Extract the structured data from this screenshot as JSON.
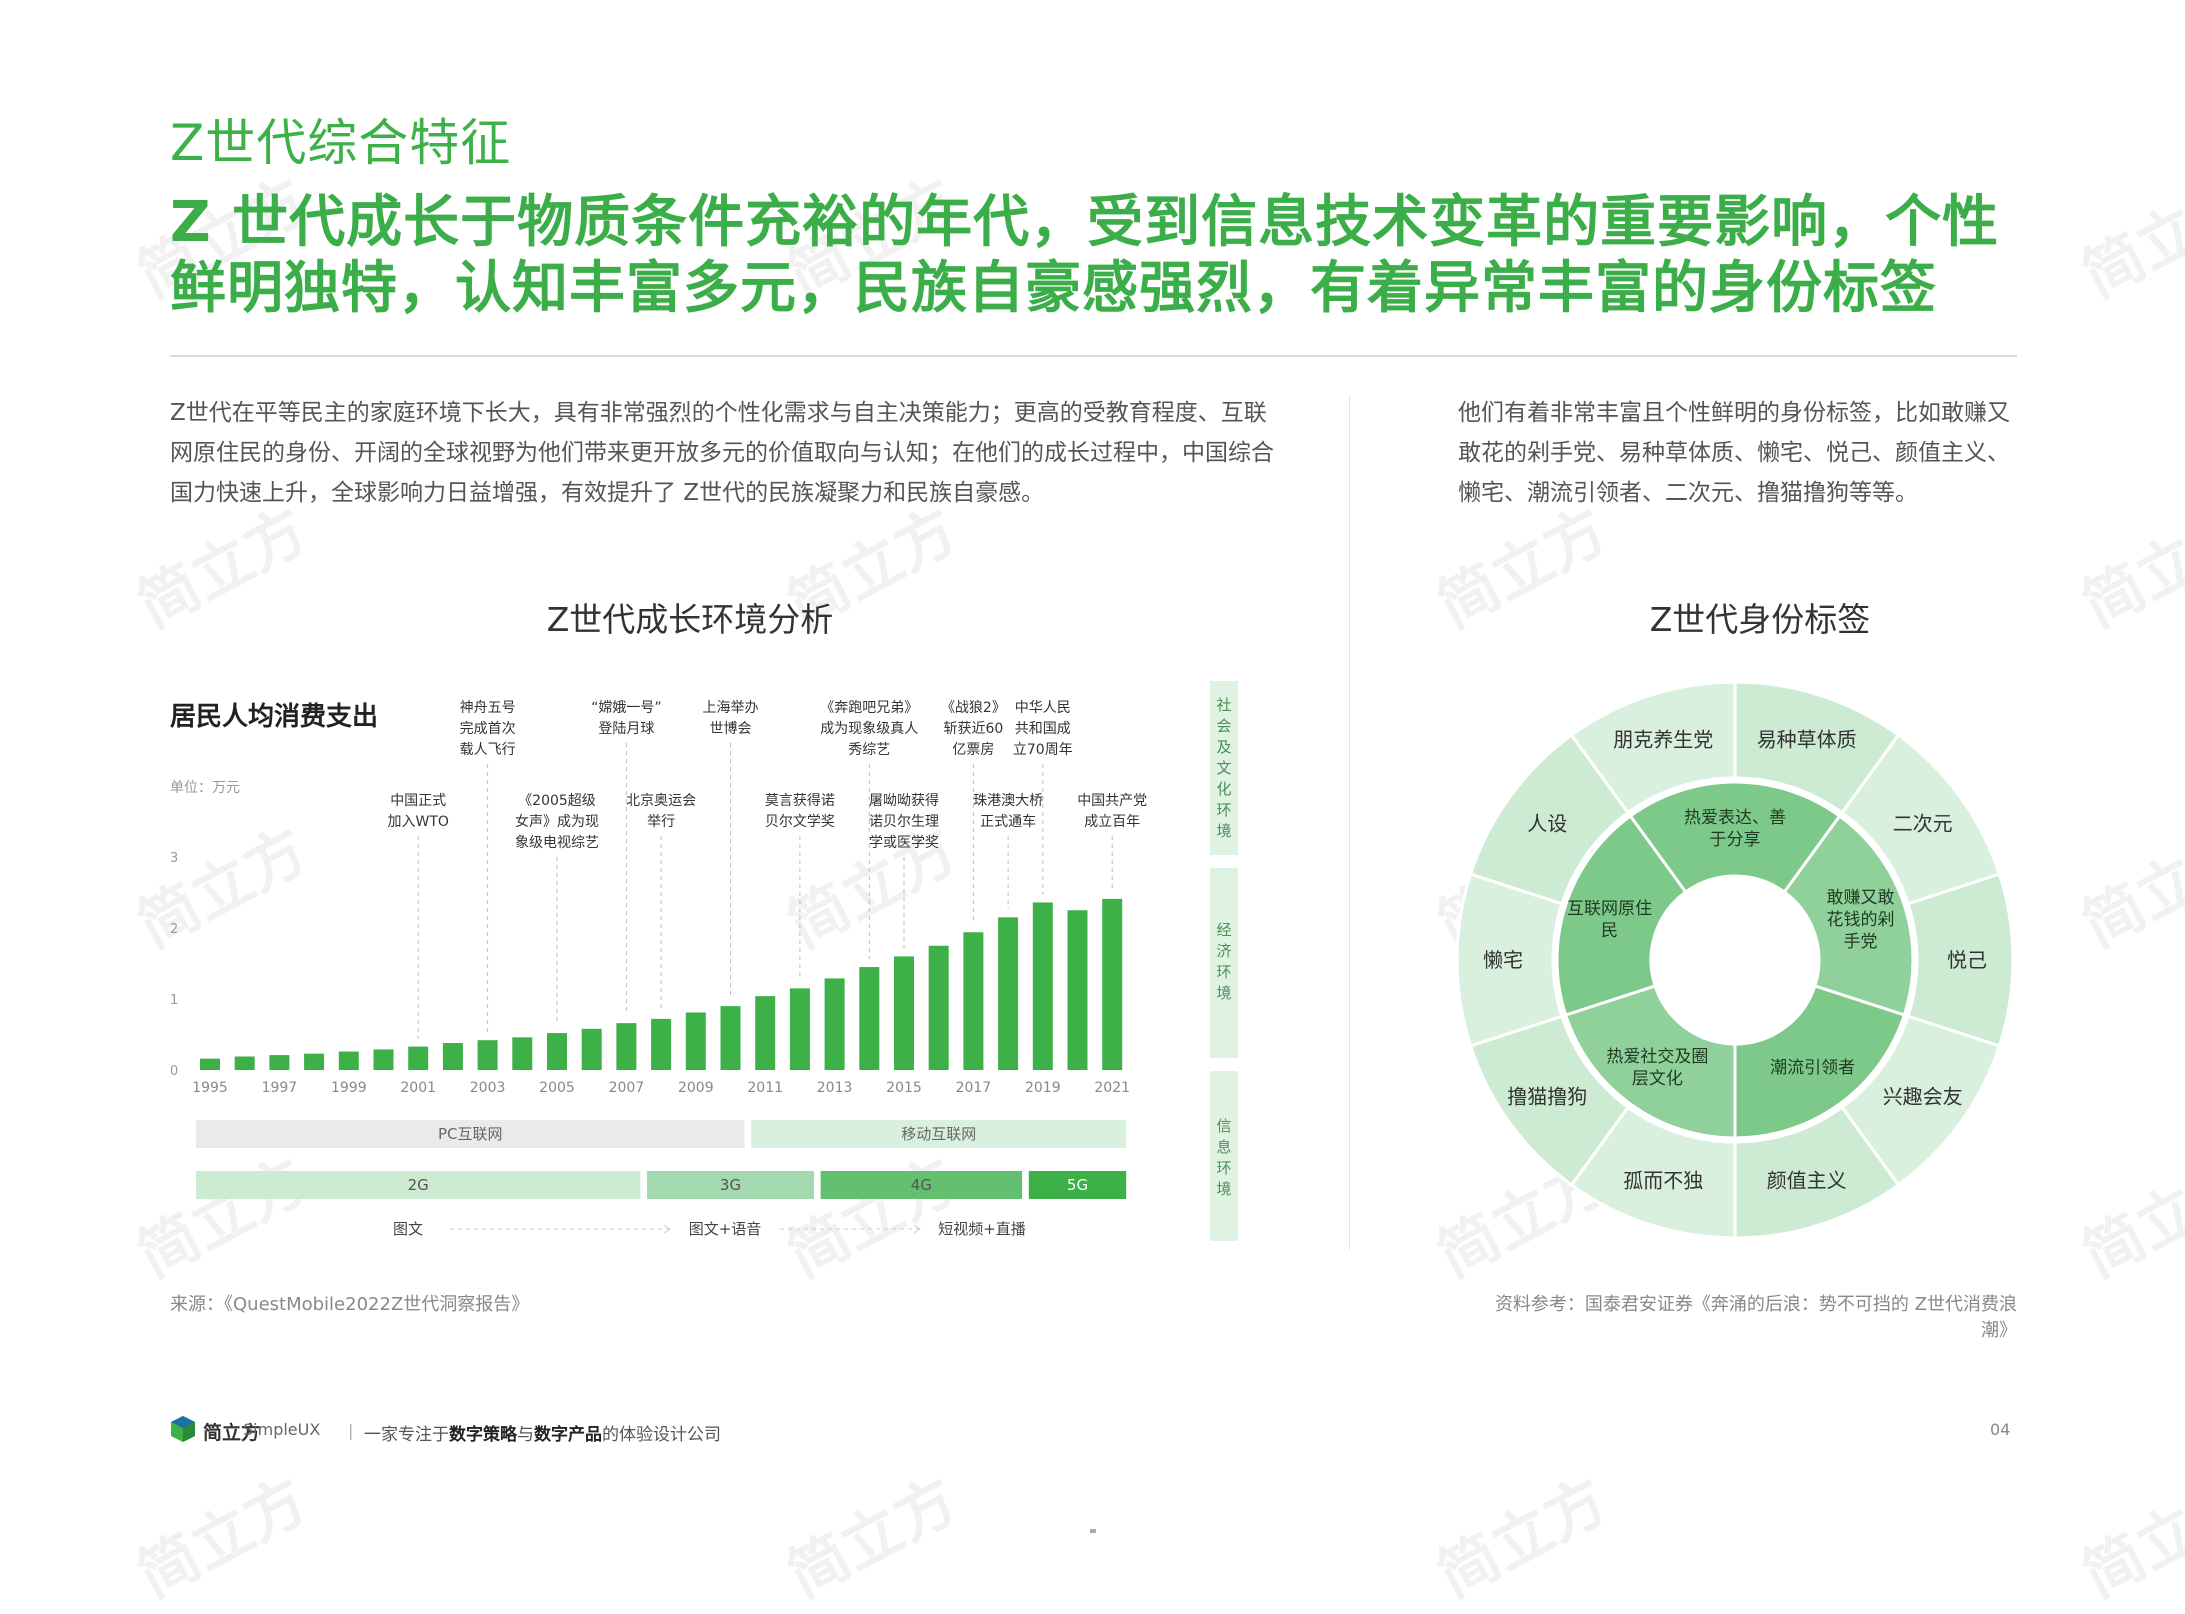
{
  "section_title": "Z世代综合特征",
  "headline": "Z 世代成长于物质条件充裕的年代，受到信息技术变革的重要影响，个性鲜明独特，认知丰富多元，民族自豪感强烈，有着异常丰富的身份标签",
  "intro_left": "Z世代在平等民主的家庭环境下长大，具有非常强烈的个性化需求与自主决策能力；更高的受教育程度、互联网原住民的身份、开阔的全球视野为他们带来更开放多元的价值取向与认知；在他们的成长过程中，中国综合国力快速上升，全球影响力日益增强，有效提升了 Z世代的民族凝聚力和民族自豪感。",
  "intro_right": "他们有着非常丰富且个性鲜明的身份标签，比如敢赚又敢花的剁手党、易种草体质、懒宅、悦己、颜值主义、懒宅、潮流引领者、二次元、撸猫撸狗等等。",
  "left_chart_title": "Z世代成长环境分析",
  "right_chart_title": "Z世代身份标签",
  "chart_label": "居民人均消费支出",
  "unit_label": "单位：万元",
  "side_bands": {
    "social": "社会及文化环境",
    "economy": "经济环境",
    "info": "信息环境"
  },
  "chart_data": {
    "type": "bar",
    "title": "居民人均消费支出",
    "ylabel": "单位：万元",
    "ylim": [
      0,
      3
    ],
    "yticks": [
      "0",
      "1",
      "2",
      "3"
    ],
    "categories": [
      "1995",
      "1996",
      "1997",
      "1998",
      "1999",
      "2000",
      "2001",
      "2002",
      "2003",
      "2004",
      "2005",
      "2006",
      "2007",
      "2008",
      "2009",
      "2010",
      "2011",
      "2012",
      "2013",
      "2014",
      "2015",
      "2016",
      "2017",
      "2018",
      "2019",
      "2020",
      "2021"
    ],
    "xtick_labels": [
      "1995",
      "1997",
      "1999",
      "2001",
      "2003",
      "2005",
      "2007",
      "2009",
      "2011",
      "2013",
      "2015",
      "2017",
      "2019",
      "2021"
    ],
    "values": [
      0.16,
      0.19,
      0.21,
      0.23,
      0.26,
      0.29,
      0.33,
      0.38,
      0.42,
      0.46,
      0.52,
      0.58,
      0.66,
      0.72,
      0.81,
      0.9,
      1.04,
      1.15,
      1.29,
      1.45,
      1.6,
      1.75,
      1.94,
      2.15,
      2.36,
      2.25,
      2.41
    ],
    "color": "#3db048",
    "events": [
      {
        "text": "中国正式\n加入WTO",
        "year": "2001"
      },
      {
        "text": "神舟五号\n完成首次\n载人飞行",
        "year": "2003"
      },
      {
        "text": "《2005超级\n女声》成为现\n象级电视综艺",
        "year": "2005"
      },
      {
        "text": "“嫦娥一号”\n登陆月球",
        "year": "2007"
      },
      {
        "text": "北京奥运会\n举行",
        "year": "2008"
      },
      {
        "text": "上海举办\n世博会",
        "year": "2010"
      },
      {
        "text": "莫言获得诺\n贝尔文学奖",
        "year": "2012"
      },
      {
        "text": "《奔跑吧兄弟》\n成为现象级真人\n秀综艺",
        "year": "2014"
      },
      {
        "text": "屠呦呦获得\n诺贝尔生理\n学或医学奖",
        "year": "2015"
      },
      {
        "text": "《战狼2》\n斩获近60\n亿票房",
        "year": "2017"
      },
      {
        "text": "珠港澳大桥\n正式通车",
        "year": "2018"
      },
      {
        "text": "中华人民\n共和国成\n立70周年",
        "year": "2019"
      },
      {
        "text": "中国共产党\n成立百年",
        "year": "2021"
      }
    ]
  },
  "lanes": {
    "internet": [
      {
        "label": "PC互联网",
        "color": "#e9eaea",
        "start": "1995",
        "end": "2010"
      },
      {
        "label": "移动互联网",
        "color": "#daf0de",
        "start": "2011",
        "end": "2021"
      }
    ],
    "network": [
      {
        "label": "2G",
        "color": "#cdebd3",
        "start": "1995",
        "end": "2007"
      },
      {
        "label": "3G",
        "color": "#a4d8ae",
        "start": "2008",
        "end": "2012"
      },
      {
        "label": "4G",
        "color": "#63c070",
        "start": "2013",
        "end": "2018"
      },
      {
        "label": "5G",
        "color": "#3db048",
        "start": "2019",
        "end": "2021"
      }
    ],
    "content": [
      "图文",
      "图文+语音",
      "短视频+直播"
    ]
  },
  "donut": {
    "inner_labels": [
      "热爱表达、善于分享",
      "敢赚又敢花钱的剁手党",
      "潮流引领者",
      "热爱社交及圈层文化",
      "互联网原住民"
    ],
    "inner_colors": [
      "#7cc98a",
      "#8fd09b",
      "#7cc98a",
      "#8fd09b",
      "#7cc98a"
    ],
    "outer_labels": [
      "易种草体质",
      "二次元",
      "悦己",
      "兴趣会友",
      "颜值主义",
      "孤而不独",
      "撸猫撸狗",
      "懒宅",
      "人设",
      "朋克养生党"
    ],
    "outer_color_a": "#daf0de",
    "outer_color_b": "#cdebd3"
  },
  "source_left": "来源：《QuestMobile2022Z世代洞察报告》",
  "source_right": "资料参考：国泰君安证券《奔涌的后浪：势不可挡的 Z世代消费浪潮》",
  "footer": {
    "brand": "简立方",
    "brand_en": "SimpleUX",
    "separator": "|",
    "tagline_1": "一家专注于",
    "tagline_b1": "数字策略",
    "tagline_2": "与",
    "tagline_b2": "数字产品",
    "tagline_3": "的体验设计公司",
    "page": "04"
  },
  "watermark": "简立方"
}
